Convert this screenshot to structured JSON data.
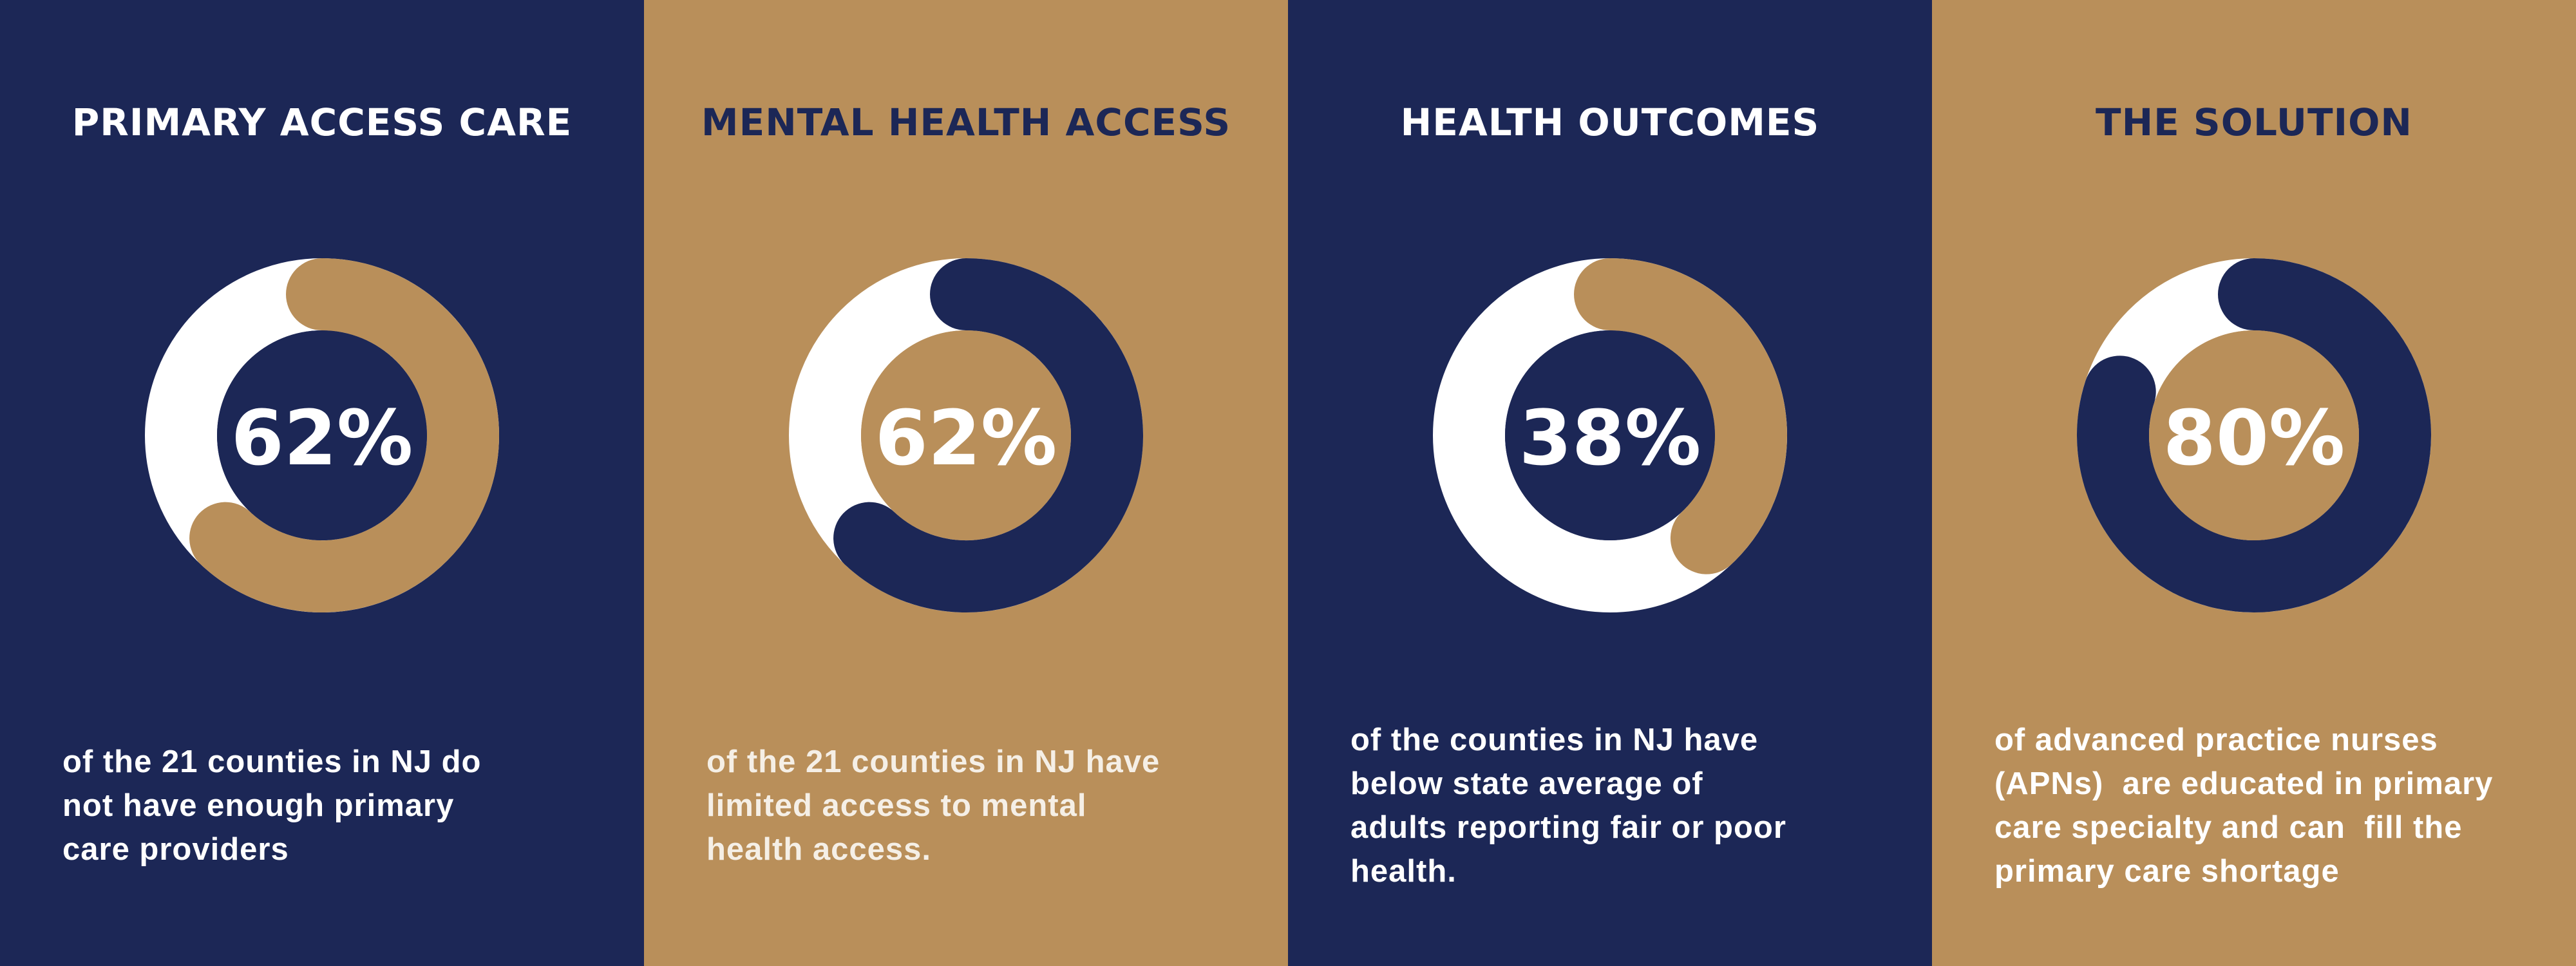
{
  "chart_data": [
    {
      "type": "donut",
      "title": "PRIMARY ACCESS CARE",
      "ylim": [
        0,
        100
      ],
      "values": [
        62
      ],
      "value_labels": [
        "62%"
      ],
      "text": [
        "of the 21 counties in NJ do",
        "not have enough primary",
        "care providers"
      ],
      "background": "#1c2756",
      "color": "#b98f5a",
      "track_color": "#ffffff",
      "center_color": "#1c2756",
      "title_color": "#ffffff",
      "text_color": "#ffffff"
    },
    {
      "type": "donut",
      "title": "MENTAL HEALTH ACCESS",
      "ylim": [
        0,
        100
      ],
      "values": [
        62
      ],
      "value_labels": [
        "62%"
      ],
      "text": [
        "of the 21 counties in NJ have",
        "limited access to mental",
        "health access."
      ],
      "background": "#b98f5a",
      "color": "#1c2756",
      "track_color": "#ffffff",
      "center_color": "#b98f5a",
      "title_color": "#1c2756",
      "text_color": "#f5efe6"
    },
    {
      "type": "donut",
      "title": "HEALTH OUTCOMES",
      "ylim": [
        0,
        100
      ],
      "values": [
        38
      ],
      "value_labels": [
        "38%"
      ],
      "text": [
        "of the counties in NJ have",
        "below state average of",
        "adults reporting fair or poor",
        "health."
      ],
      "background": "#1c2756",
      "color": "#b98f5a",
      "track_color": "#ffffff",
      "center_color": "#1c2756",
      "title_color": "#ffffff",
      "text_color": "#ffffff"
    },
    {
      "type": "donut",
      "title": "THE SOLUTION",
      "ylim": [
        0,
        100
      ],
      "values": [
        80
      ],
      "value_labels": [
        "80%"
      ],
      "text": [
        "of advanced practice nurses",
        "(APNs)  are educated in primary",
        "care specialty and can  fill the",
        "primary care shortage"
      ],
      "background": "#b98f5a",
      "color": "#1c2756",
      "track_color": "#ffffff",
      "center_color": "#b98f5a",
      "title_color": "#1c2756",
      "text_color": "#ffffff"
    }
  ]
}
